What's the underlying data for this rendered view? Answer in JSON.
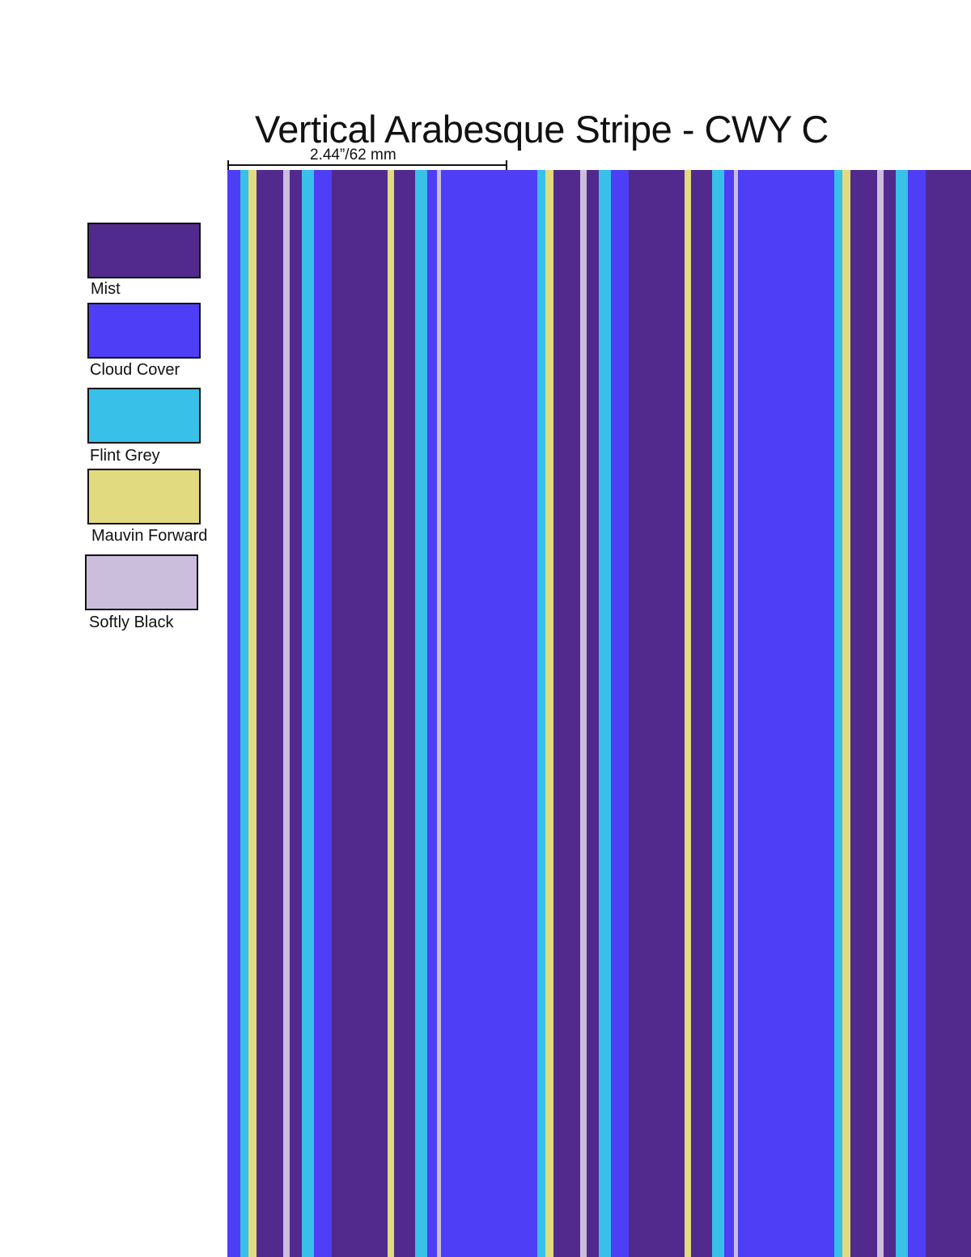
{
  "title": "Vertical Arabesque Stripe - CWY C",
  "repeat_label": "2.44”/62 mm",
  "colorways": [
    {
      "name": "Mist",
      "color": "#522A8E"
    },
    {
      "name": "Cloud Cover",
      "color": "#4E3EF5"
    },
    {
      "name": "Flint Grey",
      "color": "#38C0E9"
    },
    {
      "name": "Mauvin Forward",
      "color": "#E2DA7F"
    },
    {
      "name": "Softly Black",
      "color": "#CBBDDC"
    }
  ]
}
